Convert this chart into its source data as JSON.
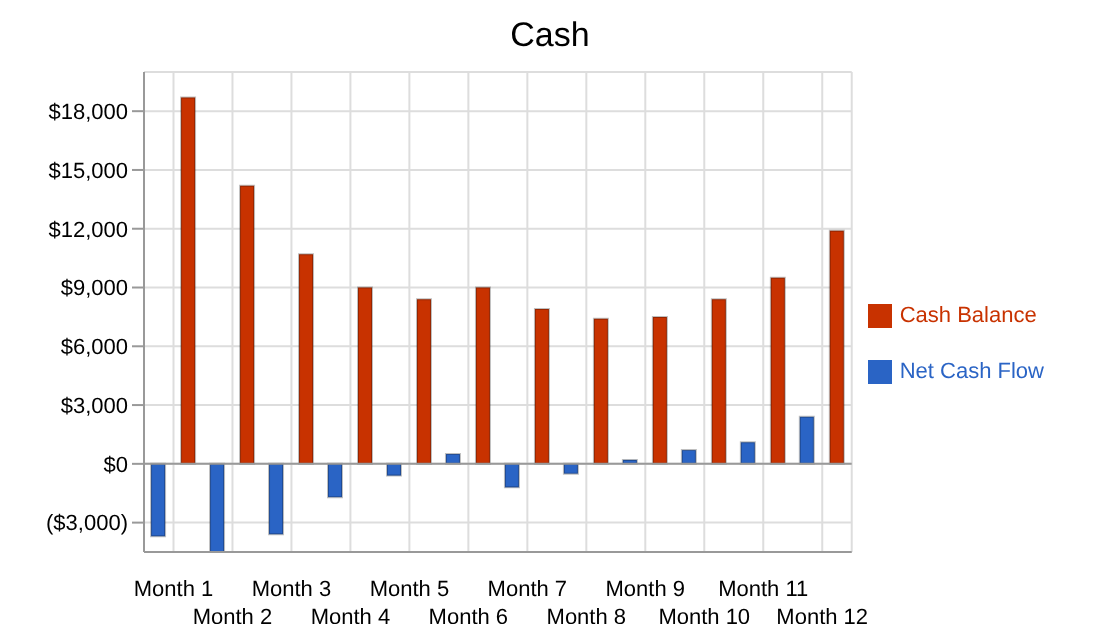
{
  "chart_data": {
    "type": "bar",
    "title": "Cash",
    "categories": [
      "Month 1",
      "Month 2",
      "Month 3",
      "Month 4",
      "Month 5",
      "Month 6",
      "Month 7",
      "Month 8",
      "Month 9",
      "Month 10",
      "Month 11",
      "Month 12"
    ],
    "series": [
      {
        "name": "Net Cash Flow",
        "color": "#2a64c5",
        "values": [
          -3700,
          -4500,
          -3600,
          -1700,
          -600,
          500,
          -1200,
          -500,
          200,
          700,
          1100,
          2400
        ]
      },
      {
        "name": "Cash Balance",
        "color": "#c83200",
        "values": [
          18700,
          14200,
          10700,
          9000,
          8400,
          9000,
          7900,
          7400,
          7500,
          8400,
          9500,
          11900
        ]
      }
    ],
    "ylim": [
      -4500,
      20000
    ],
    "yticks": [
      {
        "value": -3000,
        "label": "($3,000)"
      },
      {
        "value": 0,
        "label": "$0"
      },
      {
        "value": 3000,
        "label": "$3,000"
      },
      {
        "value": 6000,
        "label": "$6,000"
      },
      {
        "value": 9000,
        "label": "$9,000"
      },
      {
        "value": 12000,
        "label": "$12,000"
      },
      {
        "value": 15000,
        "label": "$15,000"
      },
      {
        "value": 18000,
        "label": "$18,000"
      }
    ],
    "grid": true,
    "legend": "right"
  }
}
